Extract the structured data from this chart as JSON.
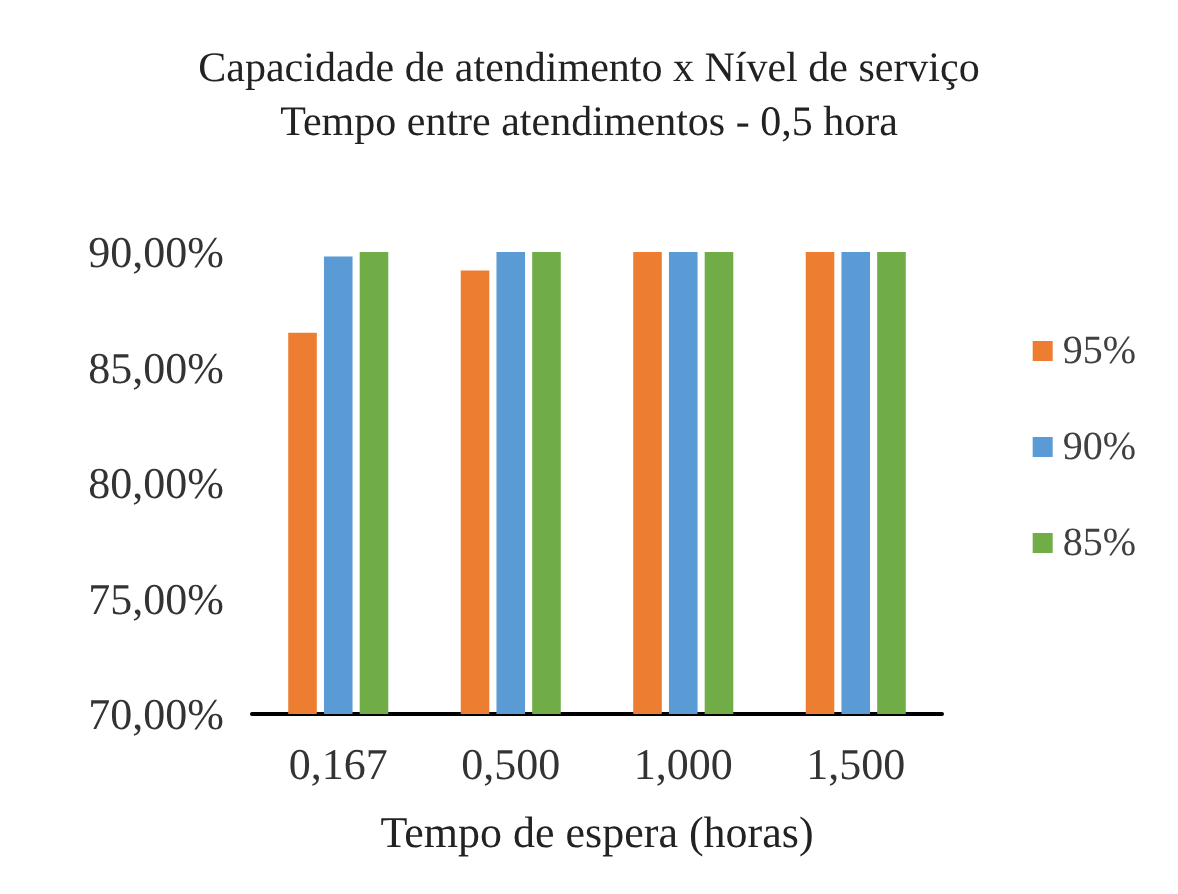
{
  "chart_data": {
    "type": "bar",
    "title": "Capacidade de atendimento x Nível de serviço",
    "subtitle": "Tempo entre atendimentos - 0,5 hora",
    "xlabel": "Tempo de espera (horas)",
    "categories": [
      "0,167",
      "0,500",
      "1,000",
      "1,500"
    ],
    "series": [
      {
        "name": "95%",
        "color": "#ed7d31",
        "values": [
          86.5,
          89.2,
          90,
          90
        ]
      },
      {
        "name": "90%",
        "color": "#5b9bd5",
        "values": [
          89.8,
          90,
          90,
          90
        ]
      },
      {
        "name": "85%",
        "color": "#70ad47",
        "values": [
          90,
          90,
          90,
          90
        ]
      }
    ],
    "ylim": [
      70,
      90
    ],
    "yticks": [
      {
        "value": 70,
        "label": "70,00%"
      },
      {
        "value": 75,
        "label": "75,00%"
      },
      {
        "value": 80,
        "label": "80,00%"
      },
      {
        "value": 85,
        "label": "85,00%"
      },
      {
        "value": 90,
        "label": "90,00%"
      }
    ],
    "grid": false,
    "legend": "right"
  }
}
